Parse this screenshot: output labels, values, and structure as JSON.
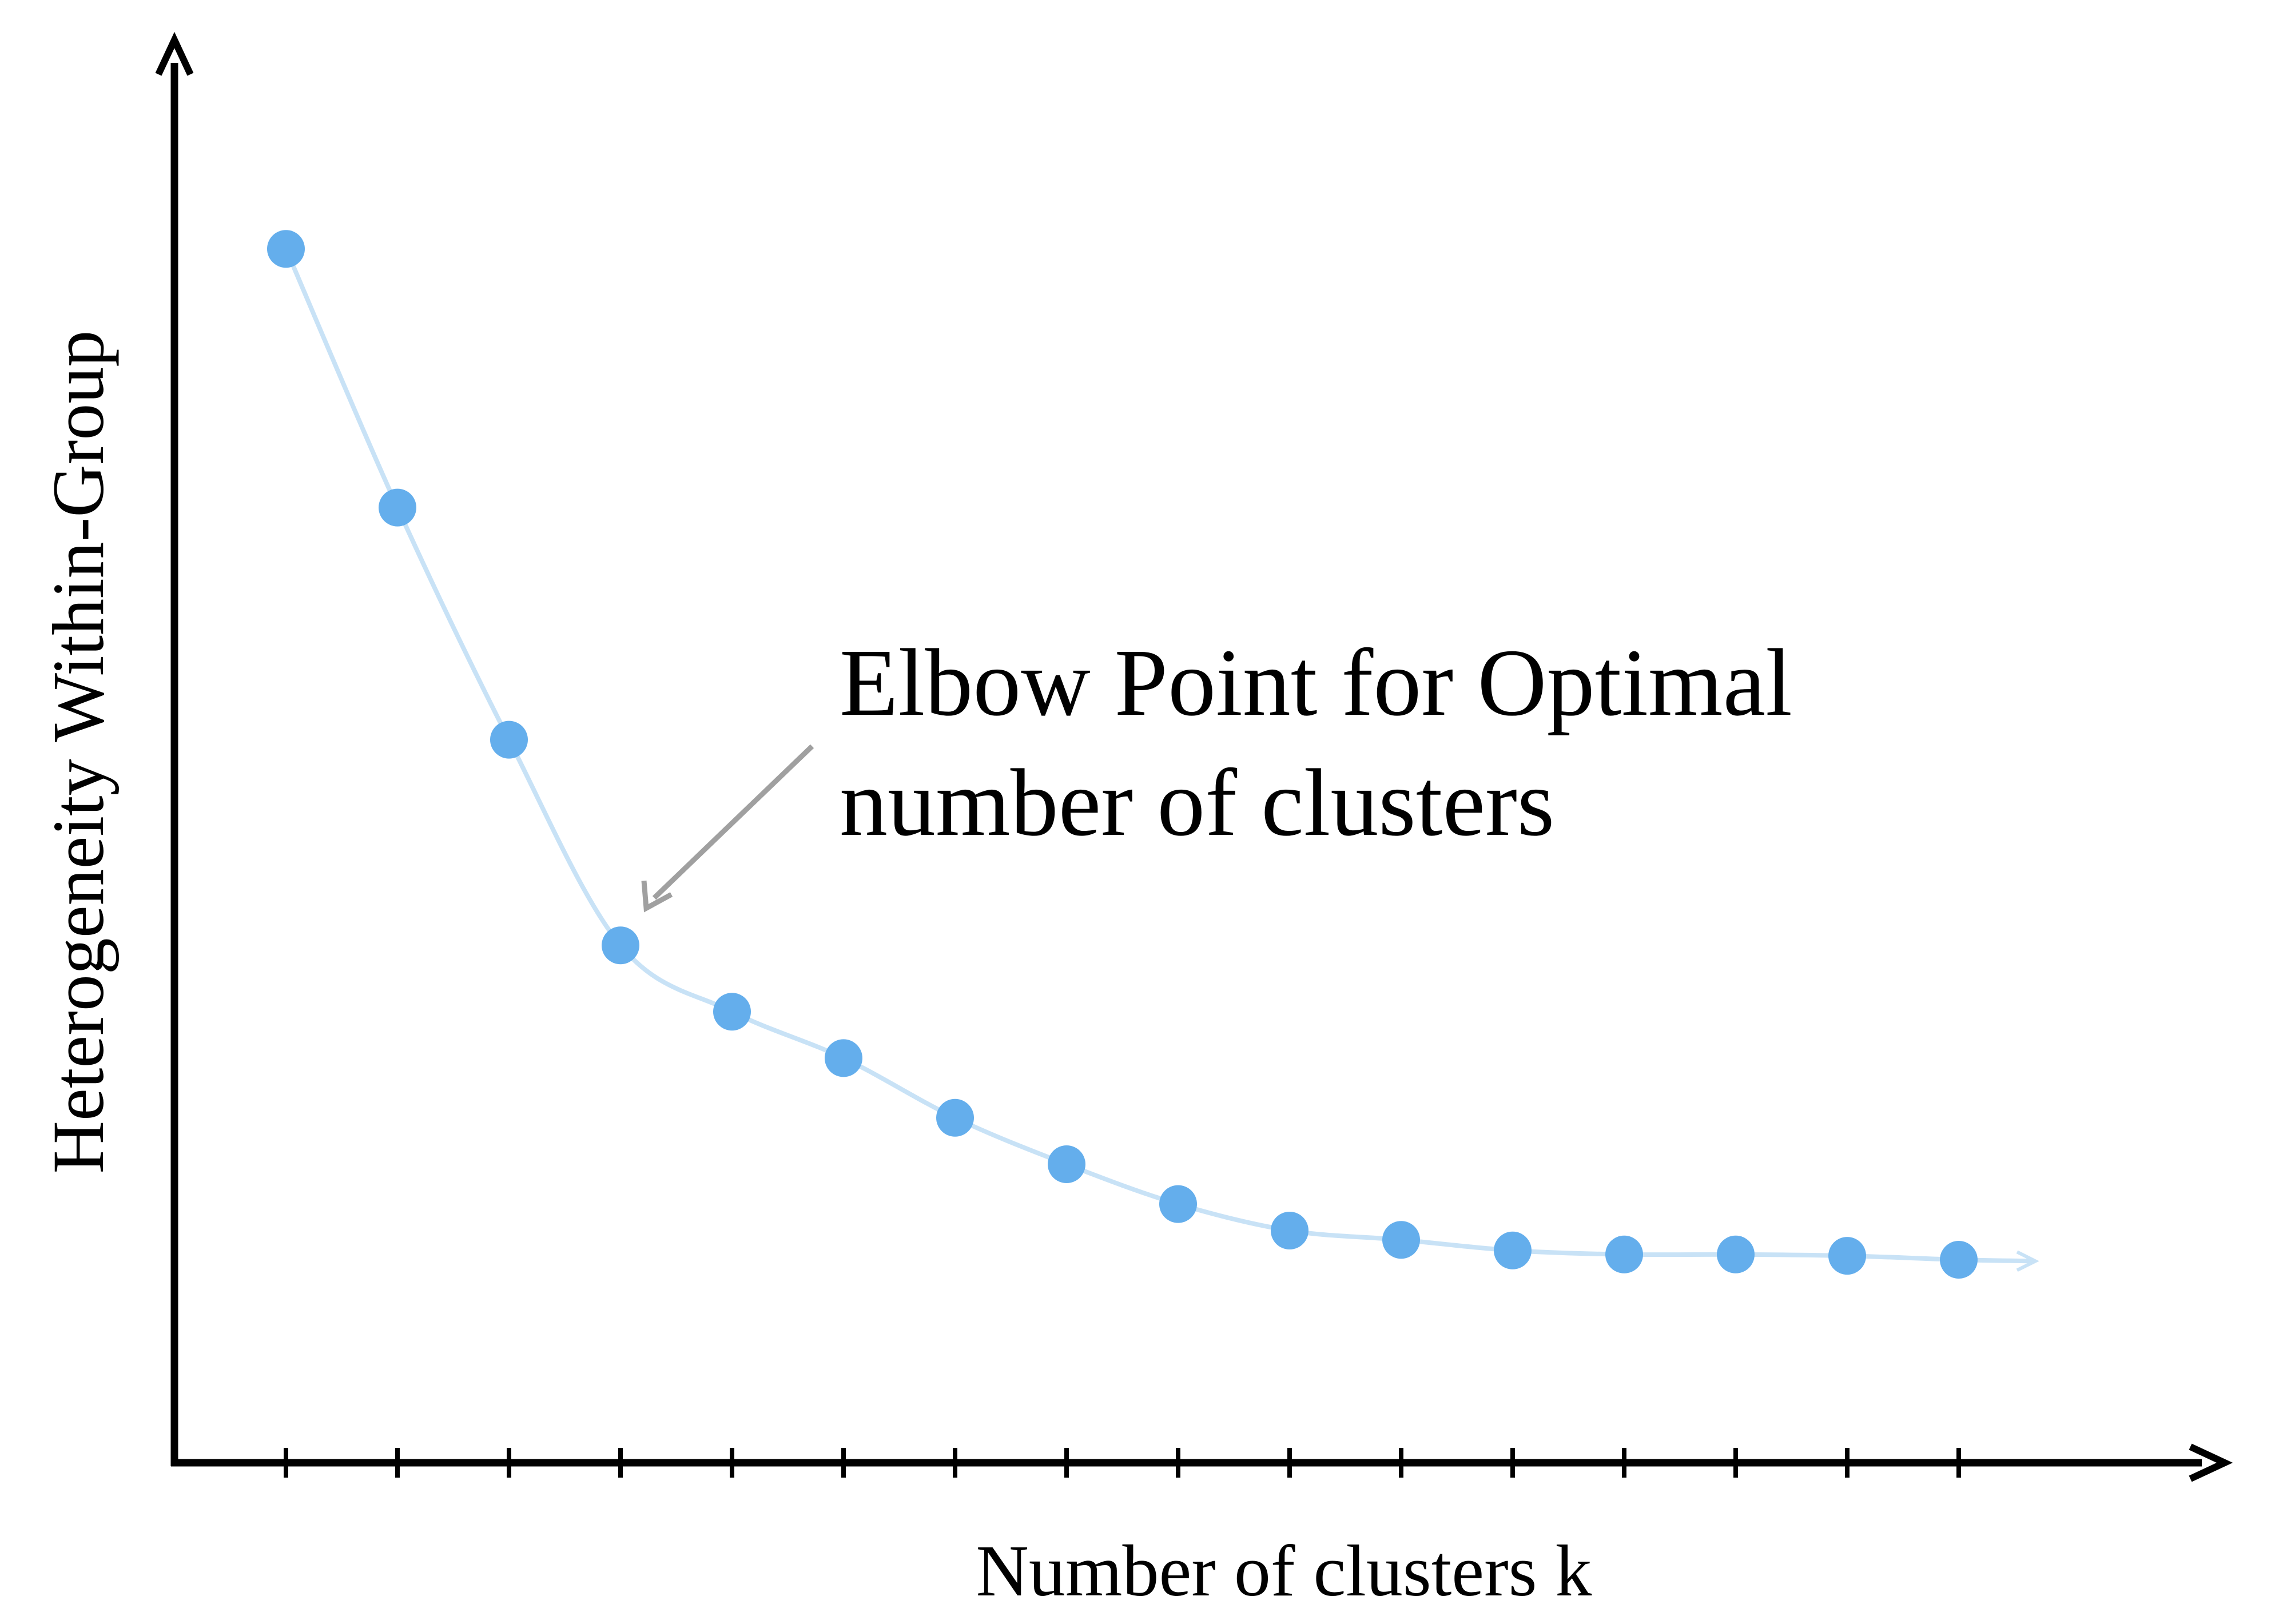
{
  "colors": {
    "point": "#64aeec",
    "line": "#c8e2f6",
    "axis": "#000000",
    "annotation_arrow": "#a0a0a0"
  },
  "chart_data": {
    "type": "line",
    "xlabel": "Number of clusters k",
    "ylabel": "Heterogeneity Within-Group",
    "x_ticks_count": 16,
    "x": [
      1,
      2,
      3,
      4,
      5,
      6,
      7,
      8,
      9,
      10,
      11,
      12,
      13,
      14,
      15,
      16
    ],
    "values": [
      91.5,
      72,
      54.5,
      39,
      34,
      30.5,
      26,
      22.5,
      19.5,
      17.5,
      16.8,
      16,
      15.7,
      15.7,
      15.6,
      15.3
    ],
    "xlim": [
      0,
      18.5
    ],
    "ylim": [
      0,
      100
    ],
    "grid": false,
    "show_tick_labels": false,
    "annotation": {
      "lines": [
        "Elbow Point for Optimal",
        "number of clusters"
      ],
      "target_index": 3
    }
  }
}
